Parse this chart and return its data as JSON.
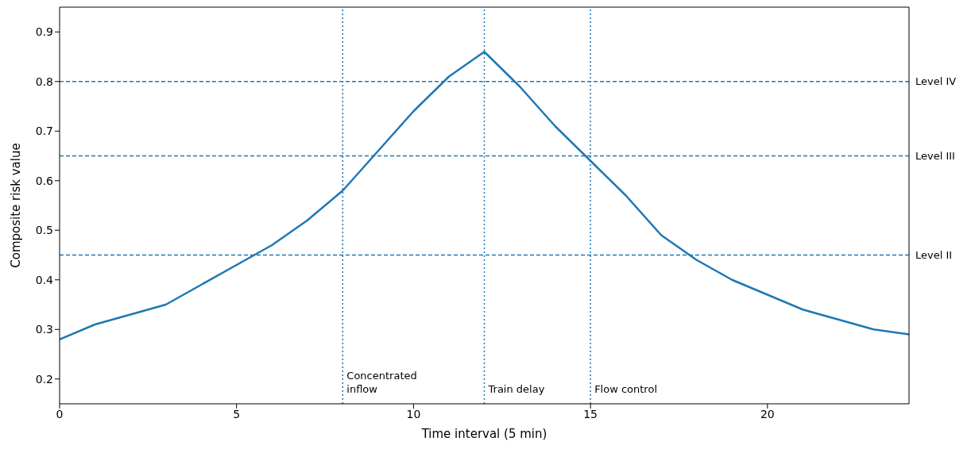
{
  "chart_data": {
    "type": "line",
    "xlabel": "Time interval (5 min)",
    "ylabel": "Composite risk value",
    "x": [
      0,
      1,
      2,
      3,
      4,
      5,
      6,
      7,
      8,
      9,
      10,
      11,
      12,
      13,
      14,
      15,
      16,
      17,
      18,
      19,
      20,
      21,
      22,
      23,
      24
    ],
    "series": [
      {
        "color": "#1f77b4",
        "values": [
          0.28,
          0.31,
          0.33,
          0.35,
          0.39,
          0.43,
          0.47,
          0.52,
          0.58,
          0.66,
          0.74,
          0.81,
          0.86,
          0.79,
          0.71,
          0.64,
          0.57,
          0.49,
          0.44,
          0.4,
          0.37,
          0.34,
          0.32,
          0.3,
          0.29
        ]
      }
    ],
    "xlim": [
      0,
      24
    ],
    "xticks": [
      0,
      5,
      10,
      15,
      20
    ],
    "ylim": [
      0.15,
      0.95
    ],
    "yticks": [
      0.2,
      0.3,
      0.4,
      0.5,
      0.6,
      0.7,
      0.8,
      0.9
    ],
    "ref_lines": [
      {
        "axis": "y",
        "value": 0.8,
        "label": "Level IV",
        "color": "#1f77b4",
        "line_style": "dashed"
      },
      {
        "axis": "y",
        "value": 0.65,
        "label": "Level III",
        "color": "#1f77b4",
        "line_style": "dashed"
      },
      {
        "axis": "y",
        "value": 0.45,
        "label": "Level II",
        "color": "#1f77b4",
        "line_style": "dashed"
      },
      {
        "axis": "x",
        "value": 8,
        "label": "Concentrated\ninflow",
        "color": "#1f77b4",
        "line_style": "dotted"
      },
      {
        "axis": "x",
        "value": 12,
        "label": "Train delay",
        "color": "#1f77b4",
        "line_style": "dotted"
      },
      {
        "axis": "x",
        "value": 15,
        "label": "Flow control",
        "color": "#1f77b4",
        "line_style": "dotted"
      }
    ],
    "grid": false,
    "legend": false,
    "marker": "none",
    "line_style": "solid"
  }
}
